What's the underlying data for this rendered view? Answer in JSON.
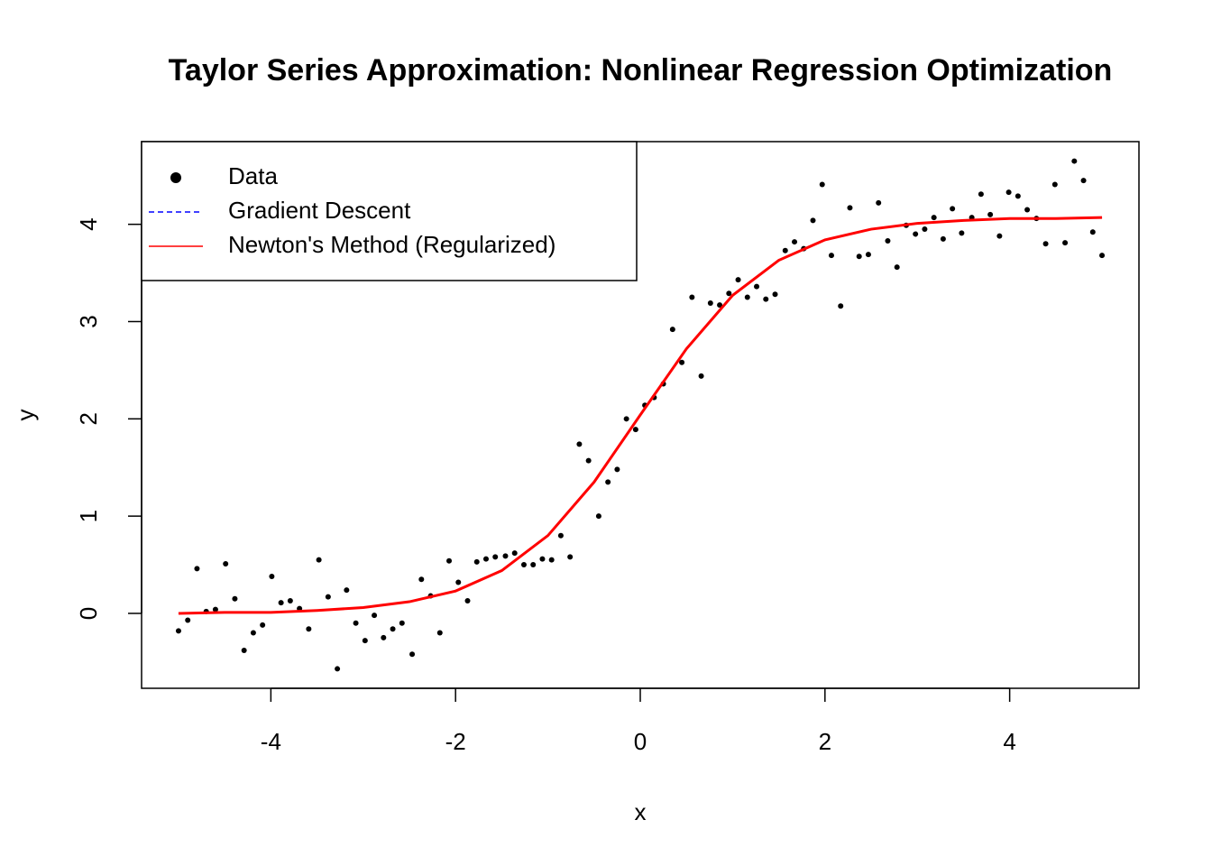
{
  "chart_data": {
    "type": "scatter",
    "title": "Taylor Series Approximation: Nonlinear Regression Optimization",
    "xlabel": "x",
    "ylabel": "y",
    "xlim": [
      -5.4,
      5.4
    ],
    "ylim": [
      -0.77,
      4.85
    ],
    "xticks": [
      -4,
      -2,
      0,
      2,
      4
    ],
    "yticks": [
      0,
      1,
      2,
      3,
      4
    ],
    "legend": "topleft",
    "series": [
      {
        "name": "Data",
        "type": "scatter",
        "color": "#000000",
        "x": [
          -5,
          -4.9,
          -4.8,
          -4.7,
          -4.6,
          -4.49,
          -4.39,
          -4.29,
          -4.19,
          -4.09,
          -3.99,
          -3.89,
          -3.79,
          -3.69,
          -3.59,
          -3.48,
          -3.38,
          -3.28,
          -3.18,
          -3.08,
          -2.98,
          -2.88,
          -2.78,
          -2.68,
          -2.58,
          -2.47,
          -2.37,
          -2.27,
          -2.17,
          -2.07,
          -1.97,
          -1.87,
          -1.77,
          -1.67,
          -1.57,
          -1.46,
          -1.36,
          -1.26,
          -1.16,
          -1.06,
          -0.96,
          -0.86,
          -0.76,
          -0.66,
          -0.56,
          -0.45,
          -0.35,
          -0.25,
          -0.15,
          -0.05,
          0.05,
          0.15,
          0.25,
          0.35,
          0.45,
          0.56,
          0.66,
          0.76,
          0.86,
          0.96,
          1.06,
          1.16,
          1.26,
          1.36,
          1.46,
          1.57,
          1.67,
          1.77,
          1.87,
          1.97,
          2.07,
          2.17,
          2.27,
          2.37,
          2.47,
          2.58,
          2.68,
          2.78,
          2.88,
          2.98,
          3.08,
          3.18,
          3.28,
          3.38,
          3.48,
          3.59,
          3.69,
          3.79,
          3.89,
          3.99,
          4.09,
          4.19,
          4.29,
          4.39,
          4.49,
          4.6,
          4.7,
          4.8,
          4.9,
          5
        ],
        "values": [
          -0.18,
          -0.07,
          0.46,
          0.02,
          0.04,
          0.51,
          0.15,
          -0.38,
          -0.2,
          -0.12,
          0.38,
          0.11,
          0.13,
          0.05,
          -0.16,
          0.55,
          0.17,
          -0.57,
          0.24,
          -0.1,
          -0.28,
          -0.02,
          -0.25,
          -0.16,
          -0.1,
          -0.42,
          0.35,
          0.18,
          -0.2,
          0.54,
          0.32,
          0.13,
          0.53,
          0.56,
          0.58,
          0.59,
          0.62,
          0.5,
          0.5,
          0.56,
          0.55,
          0.8,
          0.58,
          1.74,
          1.57,
          1.0,
          1.35,
          1.48,
          2.0,
          1.89,
          2.14,
          2.22,
          2.36,
          2.92,
          2.58,
          3.25,
          2.44,
          3.19,
          3.17,
          3.29,
          3.43,
          3.25,
          3.36,
          3.23,
          3.28,
          3.73,
          3.82,
          3.75,
          4.04,
          4.41,
          3.68,
          3.16,
          4.17,
          3.67,
          3.69,
          4.22,
          3.83,
          3.56,
          3.99,
          3.9,
          3.95,
          4.07,
          3.85,
          4.16,
          3.91,
          4.07,
          4.31,
          4.1,
          3.88,
          4.33,
          4.29,
          4.15,
          4.06,
          3.8,
          4.41,
          3.81,
          4.65,
          4.45,
          3.92,
          3.68
        ]
      },
      {
        "name": "Gradient Descent",
        "type": "line",
        "color": "#0000ff",
        "line_style": "dashed",
        "x": [
          -5,
          -4.5,
          -4,
          -3.5,
          -3,
          -2.5,
          -2,
          -1.5,
          -1,
          -0.5,
          0,
          0.5,
          1,
          1.5,
          2,
          2.5,
          3,
          3.5,
          4,
          4.5,
          5
        ],
        "values": [
          0.0,
          0.01,
          0.01,
          0.03,
          0.06,
          0.12,
          0.23,
          0.44,
          0.8,
          1.35,
          2.04,
          2.72,
          3.27,
          3.63,
          3.84,
          3.95,
          4.01,
          4.04,
          4.06,
          4.06,
          4.07
        ]
      },
      {
        "name": "Newton's Method (Regularized)",
        "type": "line",
        "color": "#ff0000",
        "line_style": "solid",
        "x": [
          -5,
          -4.5,
          -4,
          -3.5,
          -3,
          -2.5,
          -2,
          -1.5,
          -1,
          -0.5,
          0,
          0.5,
          1,
          1.5,
          2,
          2.5,
          3,
          3.5,
          4,
          4.5,
          5
        ],
        "values": [
          0.0,
          0.01,
          0.01,
          0.03,
          0.06,
          0.12,
          0.23,
          0.44,
          0.8,
          1.35,
          2.04,
          2.72,
          3.27,
          3.63,
          3.84,
          3.95,
          4.01,
          4.04,
          4.06,
          4.06,
          4.07
        ]
      }
    ]
  }
}
